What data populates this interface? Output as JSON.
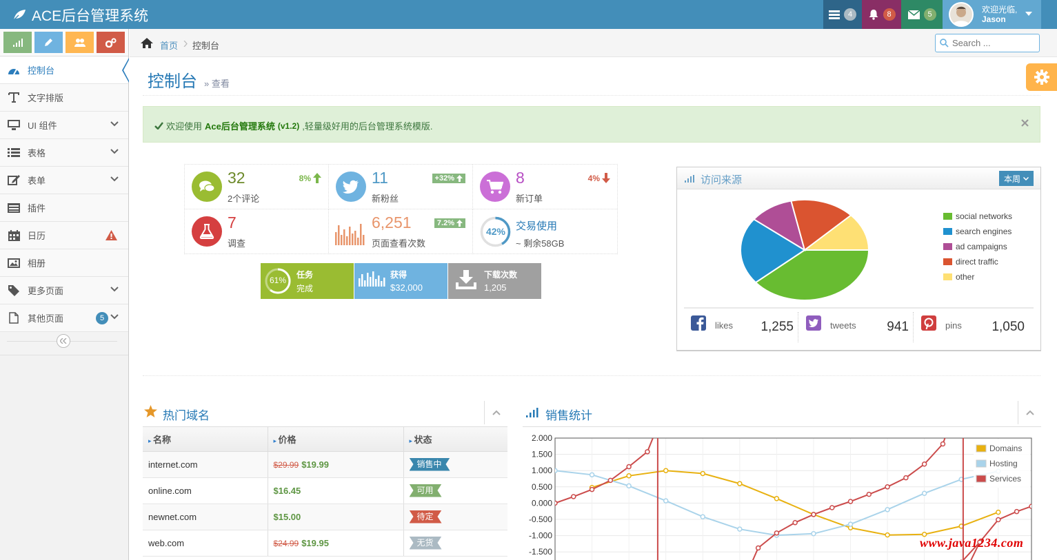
{
  "navbar": {
    "brand": "ACE后台管理系统",
    "tasks_count": "4",
    "notifications_count": "8",
    "messages_count": "5",
    "user_greeting": "欢迎光临,",
    "user_name": "Jason"
  },
  "breadcrumb": {
    "home": "首页",
    "current": "控制台"
  },
  "search": {
    "placeholder": "Search ..."
  },
  "sidebar": {
    "items": [
      {
        "label": "控制台"
      },
      {
        "label": "文字排版"
      },
      {
        "label": "UI 组件"
      },
      {
        "label": "表格"
      },
      {
        "label": "表单"
      },
      {
        "label": "插件"
      },
      {
        "label": "日历"
      },
      {
        "label": "相册"
      },
      {
        "label": "更多页面"
      },
      {
        "label": "其他页面",
        "badge": "5"
      }
    ]
  },
  "page": {
    "title": "控制台",
    "subtitle": "查看"
  },
  "alert": {
    "text_prefix": "欢迎使用",
    "text_strong": "Ace后台管理系统",
    "version": "(v1.2)",
    "text_suffix": ",轻量级好用的后台管理系统模版."
  },
  "infoboxes": [
    {
      "number": "32",
      "text": "2个评论",
      "stat": "8%"
    },
    {
      "number": "11",
      "text": "新粉丝",
      "stat": "+32%"
    },
    {
      "number": "8",
      "text": "新订单",
      "stat": "4%"
    },
    {
      "number": "7",
      "text": "调查"
    },
    {
      "number": "6,251",
      "text": "页面查看次数",
      "stat": "7.2%"
    },
    {
      "number": "42%",
      "text": "交易使用",
      "text2": "~ 剩余58GB"
    }
  ],
  "tiles": [
    {
      "value": "61%",
      "line1": "任务",
      "line2": "完成"
    },
    {
      "line1": "获得",
      "line2": "$32,000"
    },
    {
      "line1": "下载次数",
      "line2": "1,205"
    }
  ],
  "traffic": {
    "title": "访问来源",
    "range_button": "本周",
    "legend": [
      {
        "label": "social networks",
        "color": "#68bc31"
      },
      {
        "label": "search engines",
        "color": "#2091cf"
      },
      {
        "label": "ad campaigns",
        "color": "#af4e96"
      },
      {
        "label": "direct traffic",
        "color": "#da5430"
      },
      {
        "label": "other",
        "color": "#fee074"
      }
    ],
    "social": [
      {
        "name": "likes",
        "value": "1,255"
      },
      {
        "name": "tweets",
        "value": "941"
      },
      {
        "name": "pins",
        "value": "1,050"
      }
    ]
  },
  "domains": {
    "title": "热门域名",
    "headers": [
      "名称",
      "价格",
      "状态"
    ],
    "rows": [
      {
        "name": "internet.com",
        "old_price": "$29.99",
        "price": "$19.99",
        "status": "销售中",
        "status_color": "#3a87ad"
      },
      {
        "name": "online.com",
        "old_price": "",
        "price": "$16.45",
        "status": "可用",
        "status_color": "#82af6f"
      },
      {
        "name": "newnet.com",
        "old_price": "",
        "price": "$15.00",
        "status": "待定",
        "status_color": "#d15b47"
      },
      {
        "name": "web.com",
        "old_price": "$24.99",
        "price": "$19.95",
        "status": "无货",
        "status_color": "#abbac3"
      }
    ]
  },
  "sales": {
    "title": "销售统计"
  },
  "chart_data": {
    "type": "line",
    "title": "销售统计",
    "y_ticks": [
      "2.000",
      "1.500",
      "1.000",
      "0.500",
      "0.000",
      "-0.500",
      "-1.000",
      "-1.500"
    ],
    "ylim": [
      -1.75,
      2.0
    ],
    "xlim": [
      0,
      12.9
    ],
    "series": [
      {
        "name": "Domains",
        "color": "#e8b110",
        "x": [
          1,
          2,
          3,
          4,
          5,
          6,
          7,
          8,
          9,
          10,
          11,
          12
        ],
        "y": [
          0.48,
          0.84,
          1.0,
          0.91,
          0.6,
          0.14,
          -0.35,
          -0.76,
          -0.98,
          -0.96,
          -0.71,
          -0.28
        ]
      },
      {
        "name": "Hosting",
        "color": "#a9d3ea",
        "x": [
          0,
          1,
          2,
          3,
          4,
          5,
          6,
          7,
          8,
          9,
          10,
          11,
          12
        ],
        "y": [
          1.0,
          0.87,
          0.53,
          0.07,
          -0.42,
          -0.8,
          -0.99,
          -0.94,
          -0.65,
          -0.2,
          0.3,
          0.73,
          0.98
        ]
      },
      {
        "name": "Services",
        "color": "#cb4b4b",
        "x": [
          0,
          0.5,
          1,
          1.5,
          2,
          2.5,
          5.5,
          6,
          6.5,
          7,
          7.5,
          8,
          8.5,
          9,
          9.5,
          10,
          10.5,
          11,
          11.5,
          12,
          12.5,
          12.9
        ],
        "y": [
          0.0,
          0.2,
          0.42,
          0.7,
          1.12,
          1.58,
          -1.38,
          -0.92,
          -0.6,
          -0.35,
          -0.14,
          0.05,
          0.27,
          0.5,
          0.78,
          1.2,
          1.82,
          -1.82,
          -1.2,
          -0.51,
          -0.26,
          -0.1
        ]
      }
    ]
  },
  "watermark": "www.java1234.com"
}
